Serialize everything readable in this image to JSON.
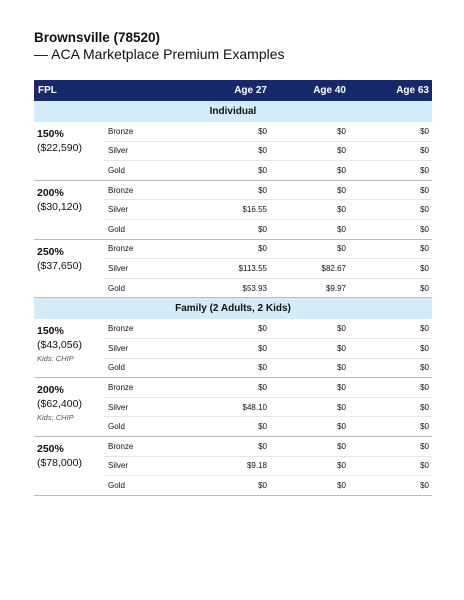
{
  "header": {
    "title": "Brownsville (78520)",
    "subtitle": "— ACA Marketplace Premium Examples"
  },
  "table": {
    "columns": [
      "FPL",
      "Age 27",
      "Age 40",
      "Age 63"
    ],
    "sections": [
      {
        "title": "Individual",
        "groups": [
          {
            "fpl": "150%",
            "income": "($22,590)",
            "rows": [
              [
                "Bronze",
                "$0",
                "$0",
                "$0"
              ],
              [
                "Silver",
                "$0",
                "$0",
                "$0"
              ],
              [
                "Gold",
                "$0",
                "$0",
                "$0"
              ]
            ]
          },
          {
            "fpl": "200%",
            "income": "($30,120)",
            "rows": [
              [
                "Bronze",
                "$0",
                "$0",
                "$0"
              ],
              [
                "Silver",
                "$16.55",
                "$0",
                "$0"
              ],
              [
                "Gold",
                "$0",
                "$0",
                "$0"
              ]
            ]
          },
          {
            "fpl": "250%",
            "income": "($37,650)",
            "rows": [
              [
                "Bronze",
                "$0",
                "$0",
                "$0"
              ],
              [
                "Silver",
                "$113.55",
                "$82.67",
                "$0"
              ],
              [
                "Gold",
                "$53.93",
                "$9.97",
                "$0"
              ]
            ]
          }
        ]
      },
      {
        "title": "Family (2 Adults, 2 Kids)",
        "groups": [
          {
            "fpl": "150%",
            "income": "($43,056)",
            "note": "Kids: CHIP",
            "rows": [
              [
                "Bronze",
                "$0",
                "$0",
                "$0"
              ],
              [
                "Silver",
                "$0",
                "$0",
                "$0"
              ],
              [
                "Gold",
                "$0",
                "$0",
                "$0"
              ]
            ]
          },
          {
            "fpl": "200%",
            "income": "($62,400)",
            "note": "Kids: CHIP",
            "rows": [
              [
                "Bronze",
                "$0",
                "$0",
                "$0"
              ],
              [
                "Silver",
                "$48.10",
                "$0",
                "$0"
              ],
              [
                "Gold",
                "$0",
                "$0",
                "$0"
              ]
            ]
          },
          {
            "fpl": "250%",
            "income": "($78,000)",
            "rows": [
              [
                "Bronze",
                "$0",
                "$0",
                "$0"
              ],
              [
                "Silver",
                "$9.18",
                "$0",
                "$0"
              ],
              [
                "Gold",
                "$0",
                "$0",
                "$0"
              ]
            ]
          }
        ]
      }
    ]
  }
}
